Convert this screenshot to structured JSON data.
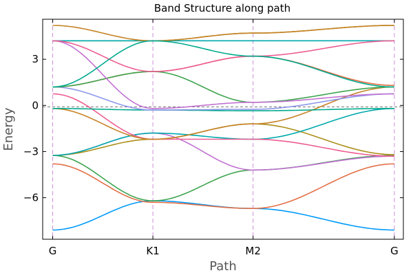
{
  "chart_data": {
    "type": "line",
    "title": "Band Structure along path",
    "xlabel": "Path",
    "ylabel": "Energy",
    "x": [
      0,
      1,
      2,
      3.41
    ],
    "x_tick_labels": [
      "G",
      "K1",
      "M2",
      "G"
    ],
    "y_ticks": [
      -6,
      -3,
      0,
      3
    ],
    "y_tick_labels": [
      "−6",
      "−3",
      "0",
      "3"
    ],
    "xlim": [
      -0.1,
      3.5
    ],
    "ylim": [
      -8.7,
      5.6
    ],
    "fermi_level": -0.1,
    "grid": false,
    "legend": "none",
    "series": [
      {
        "color": "#009AFA",
        "values": [
          -8.1,
          -6.2,
          -6.7,
          -8.1
        ]
      },
      {
        "color": "#E26F46",
        "values": [
          -3.8,
          -6.3,
          -6.7,
          -3.8
        ]
      },
      {
        "color": "#3EA44E",
        "values": [
          -3.25,
          -6.2,
          -4.2,
          -3.25
        ]
      },
      {
        "color": "#C271D2",
        "values": [
          -3.25,
          -1.8,
          -4.2,
          -3.3
        ]
      },
      {
        "color": "#AC8E18",
        "values": [
          -3.25,
          -2.2,
          -1.2,
          -3.2
        ]
      },
      {
        "color": "#00A9AD",
        "values": [
          -3.25,
          -1.8,
          -2.2,
          -0.2
        ]
      },
      {
        "color": "#ED5D92",
        "values": [
          0.75,
          -2.2,
          -2.2,
          -3.3
        ]
      },
      {
        "color": "#C68225",
        "values": [
          -0.2,
          -2.2,
          -1.2,
          1.2
        ]
      },
      {
        "color": "#00A98D",
        "values": [
          -0.2,
          -0.3,
          -0.35,
          -0.2
        ]
      },
      {
        "color": "#8E97EA",
        "values": [
          1.2,
          -0.3,
          -0.25,
          0.75
        ]
      },
      {
        "color": "#E26F46",
        "values": [
          1.2,
          2.2,
          3.2,
          1.3
        ]
      },
      {
        "color": "#3EA44E",
        "values": [
          1.2,
          2.2,
          0.2,
          1.2
        ]
      },
      {
        "color": "#C271D2",
        "values": [
          4.2,
          -0.2,
          0.2,
          0.75
        ]
      },
      {
        "color": "#AC8E18",
        "values": [
          4.2,
          4.2,
          4.7,
          5.2
        ]
      },
      {
        "color": "#00A9AD",
        "values": [
          4.2,
          4.2,
          4.2,
          4.2
        ]
      },
      {
        "color": "#ED5D92",
        "values": [
          4.2,
          2.2,
          3.2,
          4.2
        ]
      },
      {
        "color": "#C68225",
        "values": [
          5.2,
          4.2,
          4.7,
          5.2
        ]
      },
      {
        "color": "#00A98D",
        "values": [
          1.2,
          4.2,
          3.2,
          1.2
        ]
      }
    ]
  }
}
